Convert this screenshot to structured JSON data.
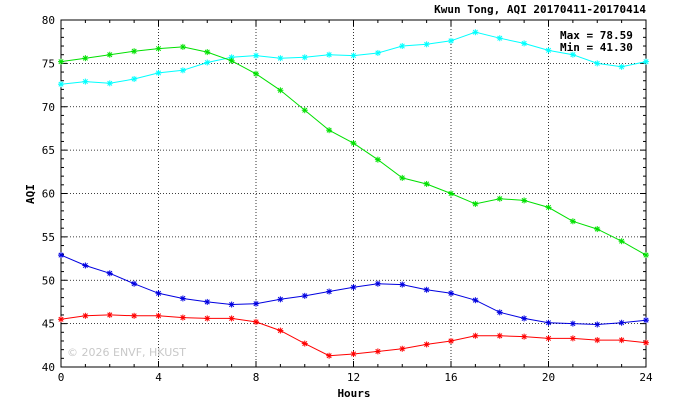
{
  "chart_data": {
    "type": "line",
    "title": "Kwun Tong, AQI 20170411-20170414",
    "xlabel": "Hours",
    "ylabel": "AQI",
    "xlim": [
      0,
      24
    ],
    "ylim": [
      40,
      80
    ],
    "x_ticks": [
      "0",
      "4",
      "8",
      "12",
      "16",
      "20",
      "24"
    ],
    "y_ticks": [
      "40",
      "45",
      "50",
      "55",
      "60",
      "65",
      "70",
      "75",
      "80"
    ],
    "grid": true,
    "stats": {
      "max": "Max = 78.59",
      "min": "Min = 41.30"
    },
    "watermark": "© 2026 ENVF, HKUST",
    "x": [
      0,
      1,
      2,
      3,
      4,
      5,
      6,
      7,
      8,
      9,
      10,
      11,
      12,
      13,
      14,
      15,
      16,
      17,
      18,
      19,
      20,
      21,
      22,
      23,
      24
    ],
    "series": [
      {
        "color": "#00ffff",
        "values": [
          72.6,
          72.9,
          72.7,
          73.2,
          73.9,
          74.2,
          75.1,
          75.7,
          75.9,
          75.6,
          75.7,
          76.0,
          75.9,
          76.2,
          77.0,
          77.2,
          77.6,
          78.59,
          77.9,
          77.3,
          76.5,
          76.0,
          75.0,
          74.6,
          75.2
        ]
      },
      {
        "color": "#00e000",
        "values": [
          75.2,
          75.6,
          76.0,
          76.4,
          76.7,
          76.9,
          76.3,
          75.3,
          73.8,
          71.9,
          69.6,
          67.3,
          65.8,
          63.9,
          61.8,
          61.1,
          60.0,
          58.8,
          59.4,
          59.2,
          58.4,
          56.8,
          55.9,
          54.5,
          52.9
        ]
      },
      {
        "color": "#0000e0",
        "values": [
          52.9,
          51.7,
          50.8,
          49.6,
          48.5,
          47.9,
          47.5,
          47.2,
          47.3,
          47.8,
          48.2,
          48.7,
          49.2,
          49.6,
          49.5,
          48.9,
          48.5,
          47.7,
          46.3,
          45.6,
          45.1,
          45.0,
          44.9,
          45.1,
          45.4
        ]
      },
      {
        "color": "#ff0000",
        "values": [
          45.5,
          45.9,
          46.0,
          45.9,
          45.9,
          45.7,
          45.6,
          45.6,
          45.2,
          44.2,
          42.7,
          41.3,
          41.5,
          41.8,
          42.1,
          42.6,
          43.0,
          43.6,
          43.6,
          43.5,
          43.3,
          43.3,
          43.1,
          43.1,
          42.8
        ]
      }
    ]
  }
}
